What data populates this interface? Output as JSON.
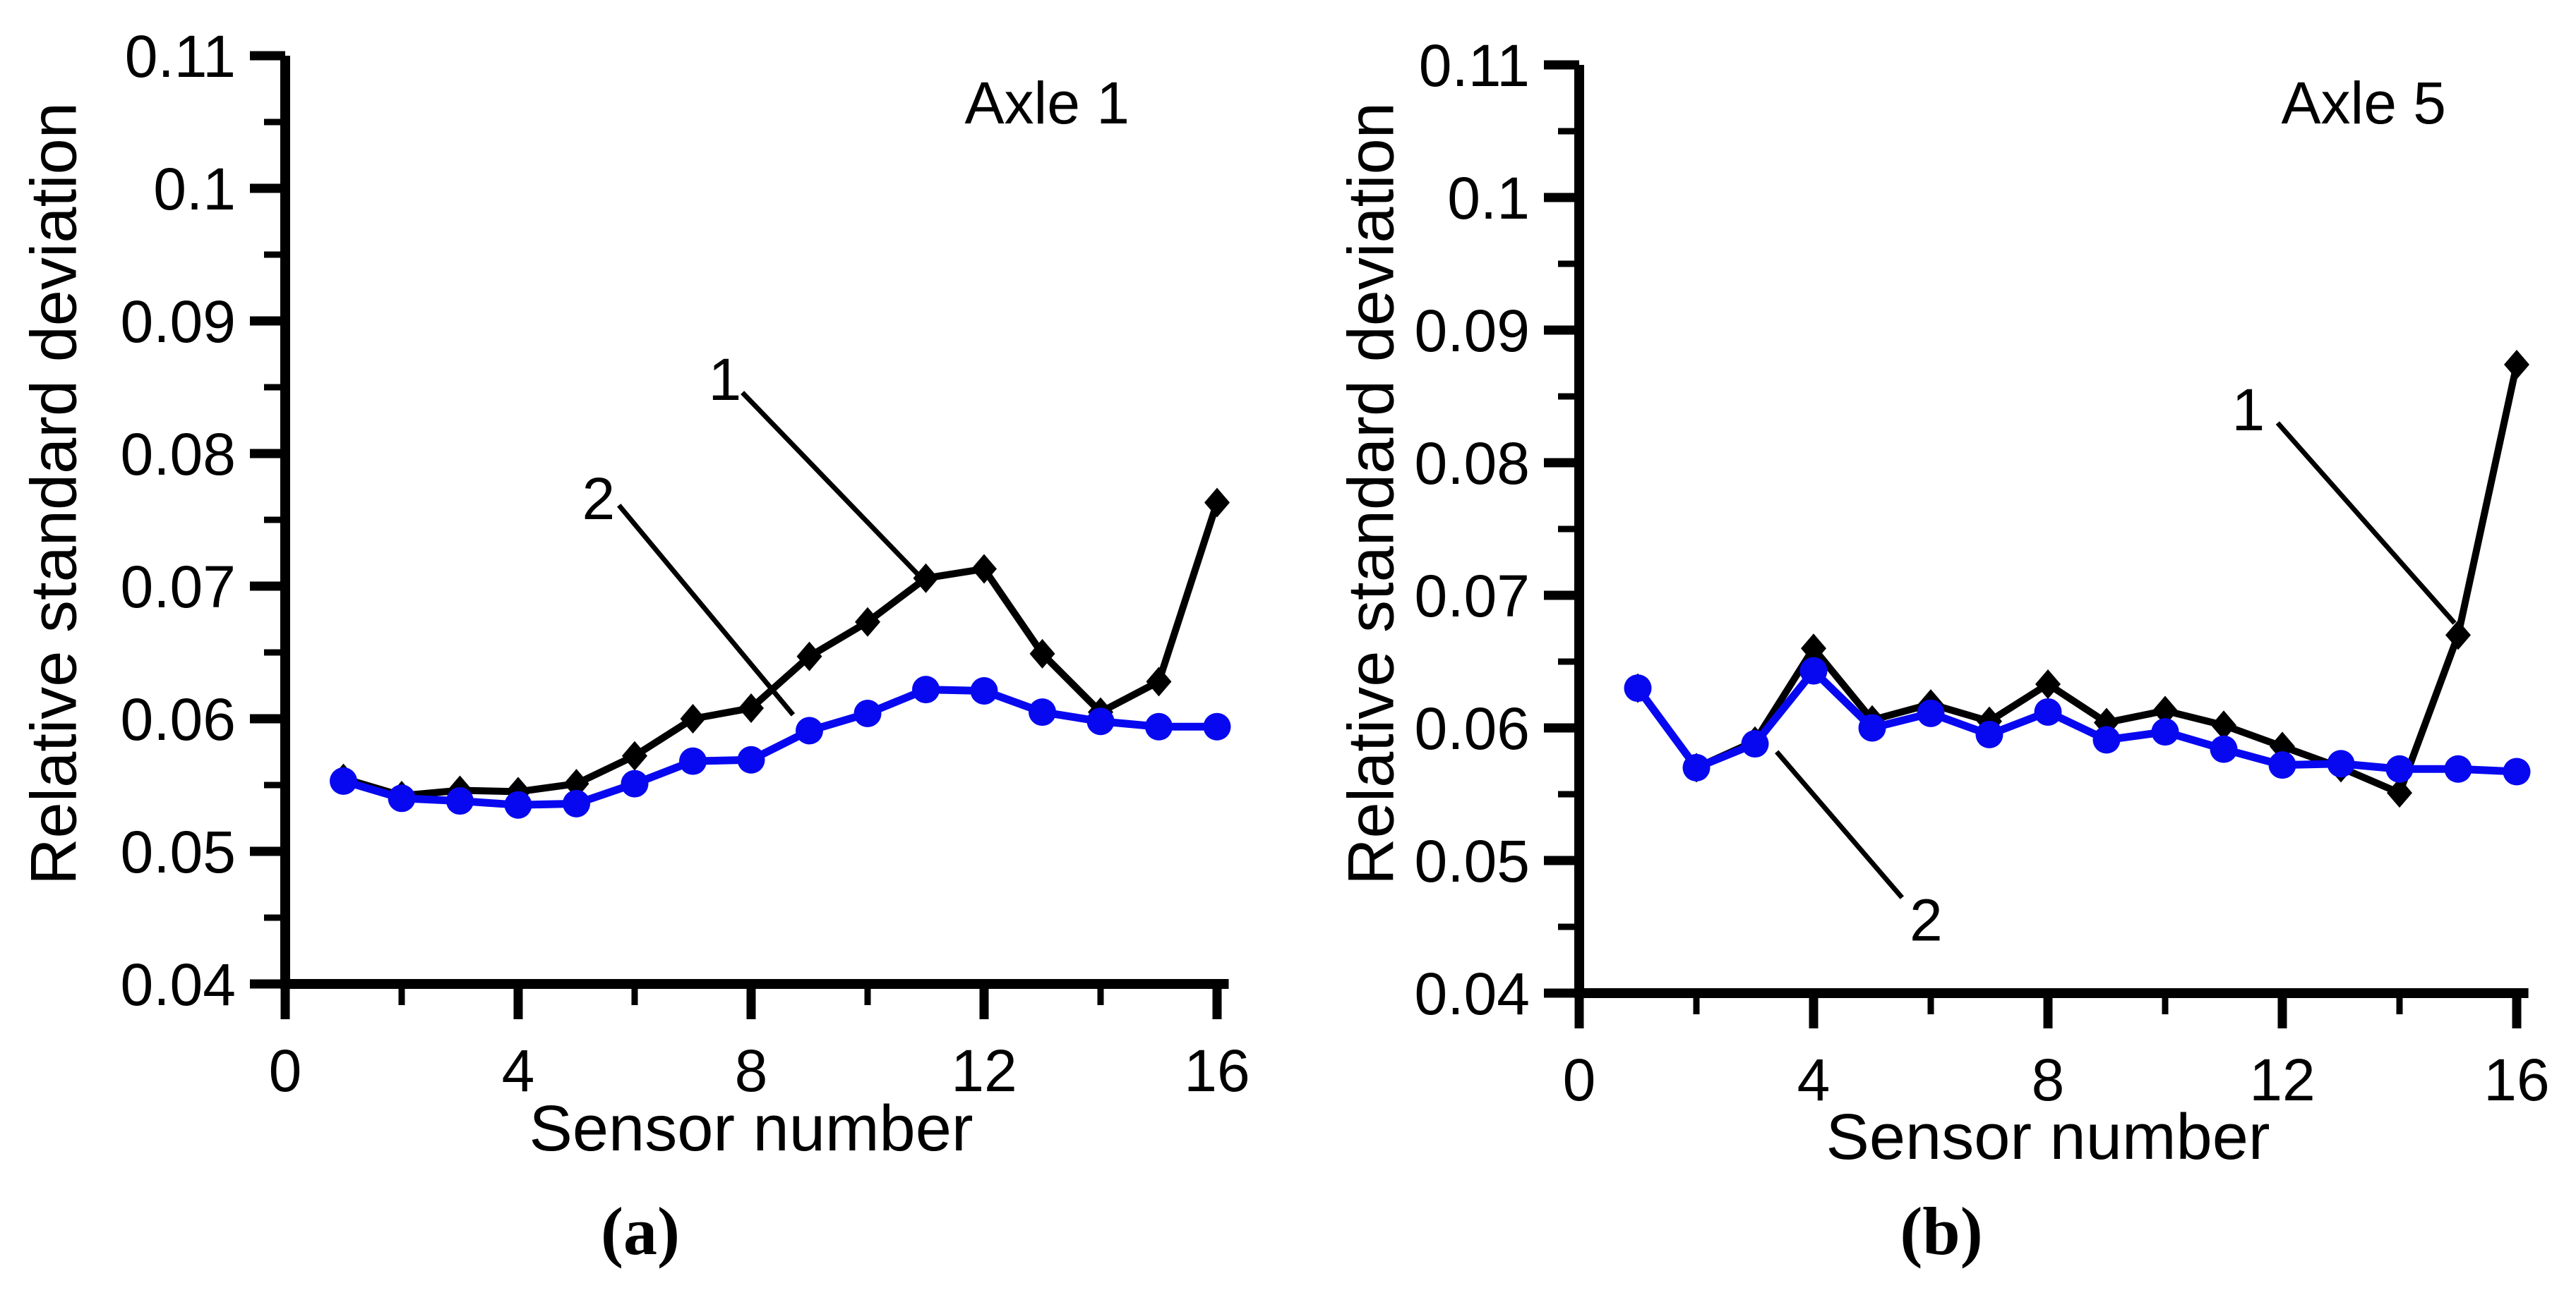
{
  "figure": {
    "background": "#ffffff",
    "axis_color": "#000000",
    "series1_color": "#000000",
    "series2_color": "#0808f0"
  },
  "chart_data": [
    {
      "type": "line",
      "panel_label": "(a)",
      "corner_title": "Axle 1",
      "xlabel": "Sensor number",
      "ylabel": "Relative standard deviation",
      "xlim": [
        0,
        16.2
      ],
      "ylim": [
        0.04,
        0.11
      ],
      "grid": false,
      "x_major_ticks": [
        0,
        4,
        8,
        12,
        16
      ],
      "x_major_tick_labels": [
        "0",
        "4",
        "8",
        "12",
        "16"
      ],
      "x_minor_ticks": [
        2,
        6,
        10,
        14
      ],
      "y_major_ticks": [
        0.04,
        0.05,
        0.06,
        0.07,
        0.08,
        0.09,
        0.1,
        0.11
      ],
      "y_major_tick_labels": [
        "0.04",
        "0.05",
        "0.06",
        "0.07",
        "0.08",
        "0.09",
        "0.1",
        "0.11"
      ],
      "y_minor_ticks": [
        0.045,
        0.055,
        0.065,
        0.075,
        0.085,
        0.095,
        0.105
      ],
      "x": [
        1,
        2,
        3,
        4,
        5,
        6,
        7,
        8,
        9,
        10,
        11,
        12,
        13,
        14,
        15,
        16
      ],
      "series": [
        {
          "name": "1",
          "marker": "diamond",
          "color": "#000000",
          "values": [
            0.0555,
            0.0542,
            0.0546,
            0.0545,
            0.0551,
            0.0572,
            0.06,
            0.0608,
            0.0647,
            0.0673,
            0.0706,
            0.0713,
            0.0649,
            0.0605,
            0.0628,
            0.0763
          ]
        },
        {
          "name": "2",
          "marker": "circle",
          "color": "#0808f0",
          "values": [
            0.0553,
            0.054,
            0.0538,
            0.0535,
            0.0536,
            0.0551,
            0.0568,
            0.0569,
            0.0591,
            0.0604,
            0.0622,
            0.0621,
            0.0605,
            0.0598,
            0.0594,
            0.0594
          ]
        }
      ],
      "callouts": [
        {
          "text": "1",
          "label_x": 7.55,
          "label_y": 0.0857,
          "line_from_x": 7.85,
          "line_from_y": 0.0846,
          "line_to_x": 10.86,
          "line_to_y": 0.0709
        },
        {
          "text": "2",
          "label_x": 5.38,
          "label_y": 0.0767,
          "line_from_x": 5.73,
          "line_from_y": 0.0761,
          "line_to_x": 8.72,
          "line_to_y": 0.0603
        }
      ]
    },
    {
      "type": "line",
      "panel_label": "(b)",
      "corner_title": "Axle 5",
      "xlabel": "Sensor number",
      "ylabel": "Relative standard deviation",
      "xlim": [
        0,
        16.2
      ],
      "ylim": [
        0.04,
        0.11
      ],
      "grid": false,
      "x_major_ticks": [
        0,
        4,
        8,
        12,
        16
      ],
      "x_major_tick_labels": [
        "0",
        "4",
        "8",
        "12",
        "16"
      ],
      "x_minor_ticks": [
        2,
        6,
        10,
        14
      ],
      "y_major_ticks": [
        0.04,
        0.05,
        0.06,
        0.07,
        0.08,
        0.09,
        0.1,
        0.11
      ],
      "y_major_tick_labels": [
        "0.04",
        "0.05",
        "0.06",
        "0.07",
        "0.08",
        "0.09",
        "0.1",
        "0.11"
      ],
      "y_minor_ticks": [
        0.045,
        0.055,
        0.065,
        0.075,
        0.085,
        0.095,
        0.105
      ],
      "x": [
        1,
        2,
        3,
        4,
        5,
        6,
        7,
        8,
        9,
        10,
        11,
        12,
        13,
        14,
        15,
        16
      ],
      "series": [
        {
          "name": "1",
          "marker": "diamond",
          "color": "#000000",
          "values": [
            0.063,
            0.057,
            0.059,
            0.066,
            0.0606,
            0.0618,
            0.0605,
            0.0633,
            0.0604,
            0.0613,
            0.0602,
            0.0586,
            0.057,
            0.0551,
            0.067,
            0.0874
          ]
        },
        {
          "name": "2",
          "marker": "circle",
          "color": "#0808f0",
          "values": [
            0.063,
            0.057,
            0.0588,
            0.0643,
            0.06,
            0.0611,
            0.0595,
            0.0612,
            0.0591,
            0.0597,
            0.0584,
            0.0572,
            0.0573,
            0.0569,
            0.0569,
            0.0567
          ]
        }
      ],
      "callouts": [
        {
          "text": "1",
          "label_x": 11.42,
          "label_y": 0.0841,
          "line_from_x": 11.92,
          "line_from_y": 0.083,
          "line_to_x": 14.94,
          "line_to_y": 0.0679
        },
        {
          "text": "2",
          "label_x": 5.92,
          "label_y": 0.0456,
          "line_from_x": 5.51,
          "line_from_y": 0.0472,
          "line_to_x": 3.37,
          "line_to_y": 0.0582
        }
      ]
    }
  ]
}
